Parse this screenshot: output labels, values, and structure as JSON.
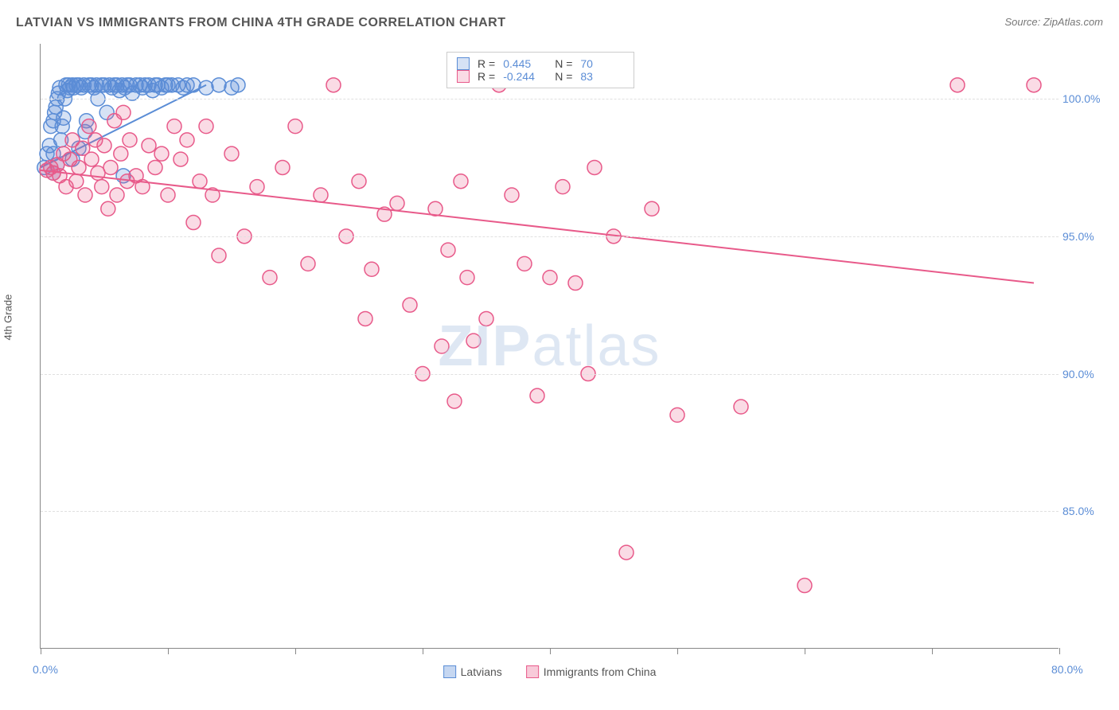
{
  "title": "LATVIAN VS IMMIGRANTS FROM CHINA 4TH GRADE CORRELATION CHART",
  "source": "Source: ZipAtlas.com",
  "y_axis_label": "4th Grade",
  "watermark_zip": "ZIP",
  "watermark_atlas": "atlas",
  "chart": {
    "type": "scatter",
    "xlim": [
      0,
      80
    ],
    "ylim": [
      80,
      102
    ],
    "xtick_positions": [
      0,
      10,
      20,
      30,
      40,
      50,
      60,
      70,
      80
    ],
    "xtick_labels": {
      "0": "0.0%",
      "80": "80.0%"
    },
    "ytick_positions": [
      85,
      90,
      95,
      100
    ],
    "ytick_labels": [
      "85.0%",
      "90.0%",
      "95.0%",
      "100.0%"
    ],
    "grid_color": "#e0e0e0",
    "background_color": "#ffffff",
    "marker_radius": 9,
    "marker_stroke_width": 1.5,
    "marker_fill_opacity": 0.25,
    "series": [
      {
        "name": "Latvians",
        "color": "#5b8dd6",
        "fill": "rgba(91,141,214,0.25)",
        "R": "0.445",
        "N": "70",
        "trend": {
          "x1": 0,
          "y1": 97.5,
          "x2": 13,
          "y2": 100.5
        },
        "points": [
          [
            0.3,
            97.5
          ],
          [
            0.5,
            98.0
          ],
          [
            0.7,
            98.3
          ],
          [
            0.8,
            99.0
          ],
          [
            1.0,
            99.2
          ],
          [
            1.1,
            99.5
          ],
          [
            1.2,
            99.7
          ],
          [
            1.3,
            100.0
          ],
          [
            1.4,
            100.2
          ],
          [
            1.5,
            100.4
          ],
          [
            1.6,
            98.5
          ],
          [
            1.7,
            99.0
          ],
          [
            1.8,
            99.3
          ],
          [
            1.9,
            100.0
          ],
          [
            2.0,
            100.5
          ],
          [
            2.1,
            100.3
          ],
          [
            2.2,
            100.5
          ],
          [
            2.3,
            100.4
          ],
          [
            2.5,
            100.5
          ],
          [
            2.6,
            100.4
          ],
          [
            2.8,
            100.5
          ],
          [
            3.0,
            100.5
          ],
          [
            3.2,
            100.4
          ],
          [
            3.4,
            100.5
          ],
          [
            3.5,
            98.8
          ],
          [
            3.6,
            99.2
          ],
          [
            3.8,
            100.5
          ],
          [
            4.0,
            100.5
          ],
          [
            4.2,
            100.4
          ],
          [
            4.4,
            100.5
          ],
          [
            4.5,
            100.0
          ],
          [
            4.8,
            100.5
          ],
          [
            5.0,
            100.5
          ],
          [
            5.2,
            99.5
          ],
          [
            5.4,
            100.5
          ],
          [
            5.6,
            100.4
          ],
          [
            5.8,
            100.5
          ],
          [
            6.0,
            100.5
          ],
          [
            6.2,
            100.3
          ],
          [
            6.4,
            100.5
          ],
          [
            6.6,
            100.4
          ],
          [
            6.8,
            100.5
          ],
          [
            7.0,
            100.5
          ],
          [
            7.2,
            100.2
          ],
          [
            7.5,
            100.5
          ],
          [
            7.8,
            100.5
          ],
          [
            8.0,
            100.4
          ],
          [
            8.2,
            100.5
          ],
          [
            8.5,
            100.5
          ],
          [
            8.8,
            100.3
          ],
          [
            9.0,
            100.5
          ],
          [
            9.2,
            100.5
          ],
          [
            9.5,
            100.4
          ],
          [
            9.8,
            100.5
          ],
          [
            10.0,
            100.5
          ],
          [
            10.3,
            100.5
          ],
          [
            10.8,
            100.5
          ],
          [
            11.2,
            100.4
          ],
          [
            11.5,
            100.5
          ],
          [
            12.0,
            100.5
          ],
          [
            2.5,
            97.8
          ],
          [
            3.0,
            98.2
          ],
          [
            1.0,
            98.0
          ],
          [
            6.5,
            97.2
          ],
          [
            13.0,
            100.4
          ],
          [
            14.0,
            100.5
          ],
          [
            15.0,
            100.4
          ],
          [
            15.5,
            100.5
          ],
          [
            1.0,
            97.3
          ],
          [
            1.3,
            97.6
          ]
        ]
      },
      {
        "name": "Immigrants from China",
        "color": "#e85a8a",
        "fill": "rgba(232,90,138,0.22)",
        "R": "-0.244",
        "N": "83",
        "trend": {
          "x1": 0,
          "y1": 97.4,
          "x2": 78,
          "y2": 93.3
        },
        "points": [
          [
            0.5,
            97.4
          ],
          [
            0.8,
            97.5
          ],
          [
            1.0,
            97.3
          ],
          [
            1.3,
            97.6
          ],
          [
            1.5,
            97.2
          ],
          [
            1.8,
            98.0
          ],
          [
            2.0,
            96.8
          ],
          [
            2.3,
            97.8
          ],
          [
            2.5,
            98.5
          ],
          [
            2.8,
            97.0
          ],
          [
            3.0,
            97.5
          ],
          [
            3.3,
            98.2
          ],
          [
            3.5,
            96.5
          ],
          [
            3.8,
            99.0
          ],
          [
            4.0,
            97.8
          ],
          [
            4.3,
            98.5
          ],
          [
            4.5,
            97.3
          ],
          [
            4.8,
            96.8
          ],
          [
            5.0,
            98.3
          ],
          [
            5.3,
            96.0
          ],
          [
            5.5,
            97.5
          ],
          [
            5.8,
            99.2
          ],
          [
            6.0,
            96.5
          ],
          [
            6.3,
            98.0
          ],
          [
            6.5,
            99.5
          ],
          [
            6.8,
            97.0
          ],
          [
            7.0,
            98.5
          ],
          [
            7.5,
            97.2
          ],
          [
            8.0,
            96.8
          ],
          [
            8.5,
            98.3
          ],
          [
            9.0,
            97.5
          ],
          [
            9.5,
            98.0
          ],
          [
            10.0,
            96.5
          ],
          [
            10.5,
            99.0
          ],
          [
            11.0,
            97.8
          ],
          [
            11.5,
            98.5
          ],
          [
            12.0,
            95.5
          ],
          [
            12.5,
            97.0
          ],
          [
            13.0,
            99.0
          ],
          [
            13.5,
            96.5
          ],
          [
            14.0,
            94.3
          ],
          [
            15.0,
            98.0
          ],
          [
            16.0,
            95.0
          ],
          [
            17.0,
            96.8
          ],
          [
            18.0,
            93.5
          ],
          [
            19.0,
            97.5
          ],
          [
            20.0,
            99.0
          ],
          [
            21.0,
            94.0
          ],
          [
            22.0,
            96.5
          ],
          [
            23.0,
            100.5
          ],
          [
            24.0,
            95.0
          ],
          [
            25.0,
            97.0
          ],
          [
            25.5,
            92.0
          ],
          [
            26.0,
            93.8
          ],
          [
            27.0,
            95.8
          ],
          [
            28.0,
            96.2
          ],
          [
            29.0,
            92.5
          ],
          [
            30.0,
            90.0
          ],
          [
            31.0,
            96.0
          ],
          [
            31.5,
            91.0
          ],
          [
            32.0,
            94.5
          ],
          [
            32.5,
            89.0
          ],
          [
            33.0,
            97.0
          ],
          [
            33.5,
            93.5
          ],
          [
            34.0,
            91.2
          ],
          [
            35.0,
            92.0
          ],
          [
            36.0,
            100.5
          ],
          [
            37.0,
            96.5
          ],
          [
            38.0,
            94.0
          ],
          [
            39.0,
            89.2
          ],
          [
            40.0,
            93.5
          ],
          [
            41.0,
            96.8
          ],
          [
            42.0,
            93.3
          ],
          [
            43.0,
            90.0
          ],
          [
            43.5,
            97.5
          ],
          [
            45.0,
            95.0
          ],
          [
            46.0,
            83.5
          ],
          [
            48.0,
            96.0
          ],
          [
            50.0,
            88.5
          ],
          [
            55.0,
            88.8
          ],
          [
            60.0,
            82.3
          ],
          [
            72.0,
            100.5
          ],
          [
            78.0,
            100.5
          ]
        ]
      }
    ]
  },
  "legend_bottom": [
    {
      "label": "Latvians",
      "border": "#5b8dd6",
      "fill": "rgba(91,141,214,0.35)"
    },
    {
      "label": "Immigrants from China",
      "border": "#e85a8a",
      "fill": "rgba(232,90,138,0.32)"
    }
  ],
  "legend_box_labels": {
    "R": "R =",
    "N": "N ="
  }
}
